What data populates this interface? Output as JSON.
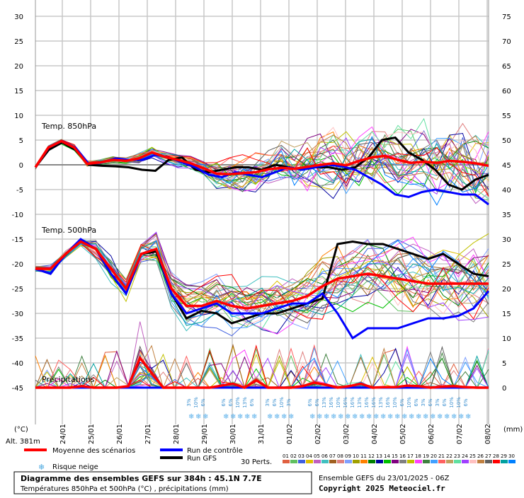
{
  "chart_data": {
    "type": "line",
    "title": "Diagramme des ensembles GEFS sur 384h : 45.1N 7.7E",
    "subtitle": "Températures 850hPa et 500hPa (°C) , précipitations (mm)",
    "run_info": "Ensemble GEFS du 23/01/2025 - 06Z",
    "copyright": "Copyright 2025 Meteociel.fr",
    "altitude": "Alt. 381m",
    "y_left_unit": "(°C)",
    "y_right_unit": "(mm)",
    "y_left_ticks": [
      "30",
      "25",
      "20",
      "15",
      "10",
      "5",
      "0",
      "-5",
      "-10",
      "-15",
      "-20",
      "-25",
      "-30",
      "-35",
      "-40",
      "-45"
    ],
    "y_right_ticks": [
      "75",
      "70",
      "65",
      "60",
      "55",
      "50",
      "45",
      "40",
      "35",
      "30",
      "25",
      "20",
      "15",
      "10",
      "5",
      "0"
    ],
    "y_left_range": [
      -45,
      30
    ],
    "y_right_range": [
      0,
      75
    ],
    "x_ticks": [
      "24/01",
      "25/01",
      "26/01",
      "27/01",
      "28/01",
      "29/01",
      "30/01",
      "31/01",
      "01/02",
      "02/02",
      "03/02",
      "04/02",
      "05/02",
      "06/02",
      "07/02",
      "08/02"
    ],
    "section_labels": {
      "t850": "Temp. 850hPa",
      "t500": "Temp. 500hPa",
      "precip": "Précipitations"
    },
    "snow_risk": [
      "3%",
      "10%",
      "6%",
      "6%",
      "6%",
      "10%",
      "13%",
      "6%",
      "3%",
      "6%",
      "10%",
      "3%",
      "6%",
      "6%",
      "13%",
      "16%",
      "10%",
      "16%",
      "16%",
      "13%",
      "16%",
      "16%",
      "13%",
      "16%",
      "10%",
      "6%",
      "10%",
      "6%",
      "3%",
      "6%",
      "3%",
      "6%",
      "10%",
      "10%",
      "6%"
    ],
    "legend": {
      "mean": "Moyenne des scénarios",
      "control": "Run de contrôle",
      "gfs": "Run GFS",
      "snow": "Risque neige",
      "perts_label": "30 Perts.",
      "pert_numbers": [
        "01",
        "02",
        "03",
        "04",
        "05",
        "06",
        "07",
        "08",
        "09",
        "10",
        "11",
        "12",
        "13",
        "14",
        "15",
        "16",
        "17",
        "18",
        "19",
        "20",
        "21",
        "22",
        "23",
        "24",
        "25",
        "26",
        "27",
        "28",
        "29",
        "30"
      ],
      "pert_colors": [
        "#e06040",
        "#60c060",
        "#4060e0",
        "#e0c000",
        "#c060c0",
        "#40c0c0",
        "#a06020",
        "#e08080",
        "#80a0ff",
        "#a0a000",
        "#ff8000",
        "#008000",
        "#0000a0",
        "#00c000",
        "#800080",
        "#808080",
        "#c0c000",
        "#ff40ff",
        "#408040",
        "#40a0ff",
        "#ff6060",
        "#c0a060",
        "#60e0a0",
        "#a040ff",
        "#ffc0c0",
        "#c08040",
        "#606060",
        "#ff0000",
        "#00a0a0",
        "#0080ff"
      ]
    },
    "series": [
      {
        "name": "Moyenne des scénarios",
        "t850": [
          -0.5,
          3.5,
          4.8,
          3.5,
          0.2,
          0.5,
          1.0,
          0.8,
          1.3,
          2.5,
          1.6,
          1.0,
          0.3,
          -0.7,
          -1.8,
          -1.9,
          -1.7,
          -1.5,
          -0.9,
          -0.6,
          -0.8,
          -0.4,
          0.0,
          0.3,
          -0.1,
          0.8,
          1.5,
          1.8,
          1.0,
          0.4,
          0.6,
          0.4,
          0.8,
          0.6,
          0.3,
          -0.2
        ],
        "t500": [
          -21,
          -21,
          -18,
          -15.5,
          -17,
          -21,
          -25,
          -18,
          -17,
          -25,
          -28.5,
          -28.5,
          -27.5,
          -28.5,
          -29,
          -28.5,
          -28,
          -27.5,
          -26.5,
          -24.5,
          -23,
          -22.5,
          -22,
          -22.5,
          -23,
          -23.5,
          -24,
          -24,
          -24,
          -24,
          -24
        ],
        "precip": [
          0,
          0,
          0,
          0,
          0.3,
          0,
          0,
          0,
          0.3,
          6,
          3,
          0,
          0,
          0,
          0,
          0,
          0.4,
          0.8,
          0,
          1.5,
          0,
          0,
          0,
          0.3,
          1,
          0.6,
          0,
          0.3,
          0.8,
          0,
          0.1,
          0.1,
          0.4,
          0.3,
          0,
          0.2,
          0.3,
          0.1,
          0,
          0
        ]
      },
      {
        "name": "Run de contrôle",
        "t850": [
          -0.5,
          3.5,
          4.8,
          3.5,
          0.2,
          0.5,
          1.3,
          1.0,
          1.0,
          2.0,
          1.5,
          0.5,
          -0.5,
          -2,
          -2.5,
          -1.5,
          -2,
          -2.5,
          -1.5,
          -0.5,
          -1,
          -0.5,
          0,
          -0.3,
          -1,
          -2.5,
          -4,
          -6,
          -6.5,
          -5.5,
          -5,
          -5.5,
          -6,
          -6,
          -8
        ],
        "t500": [
          -21,
          -22,
          -18,
          -15,
          -17,
          -22,
          -26,
          -18,
          -17,
          -26,
          -30,
          -29,
          -28,
          -30,
          -30,
          -30,
          -29,
          -28,
          -28,
          -26,
          -30,
          -35,
          -33,
          -33,
          -33,
          -32,
          -31,
          -31,
          -30.5,
          -29,
          -25.5
        ],
        "precip": [
          0,
          0,
          0,
          0,
          0,
          0,
          0,
          0,
          0,
          0,
          0,
          0,
          0,
          0,
          0,
          0,
          0,
          0,
          0,
          0,
          0,
          0,
          0,
          0,
          0,
          0,
          0,
          0,
          0,
          0,
          0,
          0,
          0,
          0,
          0,
          0,
          0,
          0,
          0,
          0
        ]
      },
      {
        "name": "Run GFS",
        "t850": [
          -0.5,
          3,
          4.5,
          3,
          0,
          -0.2,
          -0.3,
          -0.5,
          -1,
          -1.2,
          1,
          1.5,
          -1,
          -1.5,
          -1,
          -0.5,
          -0.5,
          -1,
          0,
          -0.5,
          -1,
          -0.5,
          -0.5,
          -1,
          -0.5,
          1.5,
          5,
          5.5,
          2.5,
          1,
          -1,
          -4,
          -5,
          -3,
          -2
        ],
        "t500": [
          -21,
          -22,
          -18,
          -15.5,
          -17,
          -22,
          -26,
          -18,
          -17.5,
          -26,
          -31,
          -29.5,
          -30,
          -32,
          -31,
          -30,
          -30,
          -29,
          -28,
          -27,
          -16,
          -15.5,
          -16,
          -16,
          -17,
          -18,
          -19,
          -18,
          -20,
          -22,
          -22.5
        ],
        "precip": [
          0,
          0,
          0,
          0,
          0,
          0,
          0,
          0,
          0,
          0,
          0,
          0,
          0,
          0,
          0,
          0,
          0,
          0,
          0,
          0,
          0,
          0,
          0,
          0,
          0,
          0,
          0,
          0,
          0,
          0,
          0,
          0,
          0,
          0,
          0,
          0,
          0,
          0,
          0,
          0
        ]
      }
    ]
  }
}
